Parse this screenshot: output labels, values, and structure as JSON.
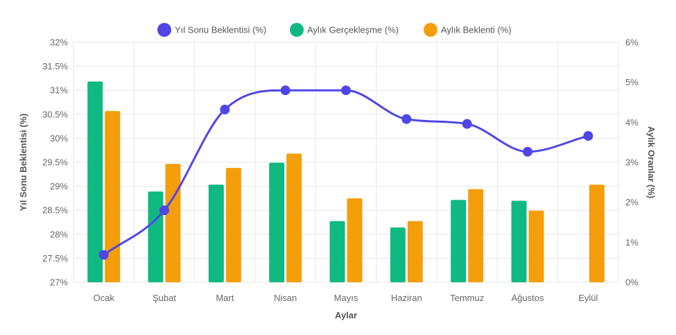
{
  "chart_data": {
    "type": "bar",
    "categories": [
      "Ocak",
      "Şubat",
      "Mart",
      "Nisan",
      "Mayıs",
      "Haziran",
      "Temmuz",
      "Ağustos",
      "Eylül"
    ],
    "xlabel": "Aylar",
    "ylabel_left": "Yıl Sonu Beklentisi (%)",
    "ylabel_right": "Aylık Oranlar (%)",
    "ylim_left": [
      27,
      32
    ],
    "ylim_right": [
      0,
      6
    ],
    "yticks_left": [
      "27%",
      "27.5%",
      "28%",
      "28.5%",
      "29%",
      "29.5%",
      "30%",
      "30.5%",
      "31%",
      "31.5%",
      "32%"
    ],
    "yticks_right": [
      "0%",
      "1%",
      "2%",
      "3%",
      "4%",
      "5%",
      "6%"
    ],
    "grid": true,
    "legend_position": "top",
    "series": [
      {
        "name": "Yıl Sonu Beklentisi (%)",
        "type": "line",
        "axis": "left",
        "color": "#4f46e5",
        "values": [
          27.57,
          28.5,
          30.6,
          31.0,
          31.0,
          30.4,
          30.3,
          29.72,
          30.05
        ]
      },
      {
        "name": "Aylık Gerçekleşme (%)",
        "type": "bar",
        "axis": "right",
        "color": "#10b981",
        "values": [
          5.02,
          2.27,
          2.44,
          2.99,
          1.53,
          1.37,
          2.06,
          2.04,
          null
        ]
      },
      {
        "name": "Aylık Beklenti (%)",
        "type": "bar",
        "axis": "right",
        "color": "#f59e0b",
        "values": [
          4.28,
          2.96,
          2.86,
          3.22,
          2.1,
          1.53,
          2.33,
          1.79,
          2.44
        ]
      }
    ]
  }
}
